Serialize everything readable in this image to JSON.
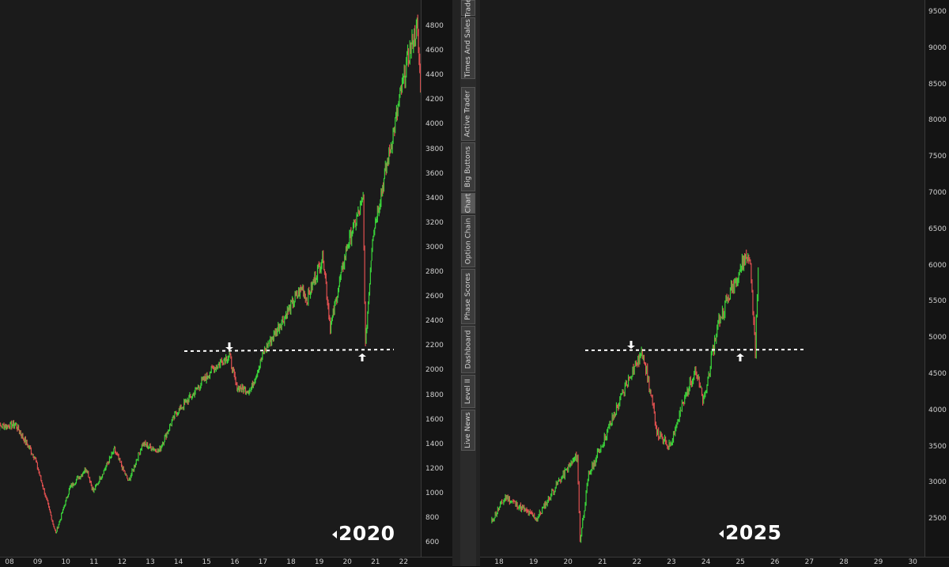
{
  "left_chart": {
    "year_label": "2020",
    "x_ticks": [
      "08",
      "09",
      "10",
      "11",
      "12",
      "13",
      "14",
      "15",
      "16",
      "17",
      "18",
      "19",
      "20",
      "21",
      "22"
    ],
    "y_ticks": [
      "4800",
      "4600",
      "4400",
      "4200",
      "4000",
      "3800",
      "3600",
      "3400",
      "3200",
      "3000",
      "2800",
      "2600",
      "2400",
      "2200",
      "2000",
      "1800",
      "1600",
      "1400",
      "1200",
      "1000",
      "800",
      "600"
    ]
  },
  "right_chart": {
    "year_label": "2025",
    "x_ticks": [
      "18",
      "19",
      "20",
      "21",
      "22",
      "23",
      "24",
      "25",
      "26",
      "27",
      "28",
      "29",
      "30"
    ],
    "y_ticks": [
      "9500",
      "9000",
      "8500",
      "8000",
      "7500",
      "7000",
      "6500",
      "6000",
      "5500",
      "5000",
      "4500",
      "4000",
      "3500",
      "3000",
      "2500"
    ]
  },
  "sidebar": {
    "tabs": [
      {
        "label": "Trade",
        "active": false
      },
      {
        "label": "Times And Sales",
        "active": false
      },
      {
        "label": "Active Trader",
        "active": false
      },
      {
        "label": "Big Buttons",
        "active": false
      },
      {
        "label": "Chart",
        "active": true
      },
      {
        "label": "Option Chain",
        "active": false
      },
      {
        "label": "Phase Scores",
        "active": false
      },
      {
        "label": "Dashboard",
        "active": false
      },
      {
        "label": "Level II",
        "active": false
      },
      {
        "label": "Live News",
        "active": false
      }
    ]
  },
  "colors": {
    "up_candle": "#3ad43a",
    "down_candle": "#e05050",
    "background": "#1b1b1b",
    "annotation": "#ffffff"
  },
  "chart_data": [
    {
      "type": "line",
      "title": "",
      "x": [
        "2007-01",
        "2007-10",
        "2008-06",
        "2009-03",
        "2009-09",
        "2010-04",
        "2010-07",
        "2011-04",
        "2011-10",
        "2012-04",
        "2012-11",
        "2013-06",
        "2014-01",
        "2014-09",
        "2015-05",
        "2015-08",
        "2016-02",
        "2016-08",
        "2017-03",
        "2017-12",
        "2018-02",
        "2018-09",
        "2018-12",
        "2019-07",
        "2020-02",
        "2020-03",
        "2020-06",
        "2021-01",
        "2021-09",
        "2022-01",
        "2022-03"
      ],
      "y": [
        1550,
        1560,
        1300,
        680,
        1050,
        1210,
        1020,
        1360,
        1100,
        1410,
        1350,
        1650,
        1800,
        2000,
        2130,
        1870,
        1840,
        2170,
        2390,
        2680,
        2580,
        2930,
        2350,
        3000,
        3390,
        2200,
        3100,
        3750,
        4540,
        4800,
        4150
      ],
      "ylim": [
        600,
        4900
      ],
      "annotations": [
        "dashed horizontal line near 2150",
        "down arrow at 2015 high",
        "up arrow at 2020 low"
      ]
    },
    {
      "type": "line",
      "title": "",
      "x": [
        "2017-08",
        "2018-01",
        "2018-12",
        "2019-07",
        "2020-02",
        "2020-03",
        "2020-06",
        "2021-01",
        "2021-09",
        "2022-01",
        "2022-06",
        "2022-10",
        "2023-07",
        "2023-10",
        "2024-03",
        "2024-07",
        "2024-12",
        "2025-02",
        "2025-04",
        "2025-05"
      ],
      "y": [
        2450,
        2800,
        2500,
        2980,
        3380,
        2200,
        3100,
        3750,
        4540,
        4800,
        3660,
        3500,
        4580,
        4100,
        5200,
        5600,
        6080,
        6140,
        4850,
        5950
      ],
      "ylim": [
        2200,
        9700
      ],
      "annotations": [
        "dashed horizontal line near 4800",
        "down arrow at 2022 high",
        "up arrow at 2025 low"
      ]
    }
  ]
}
